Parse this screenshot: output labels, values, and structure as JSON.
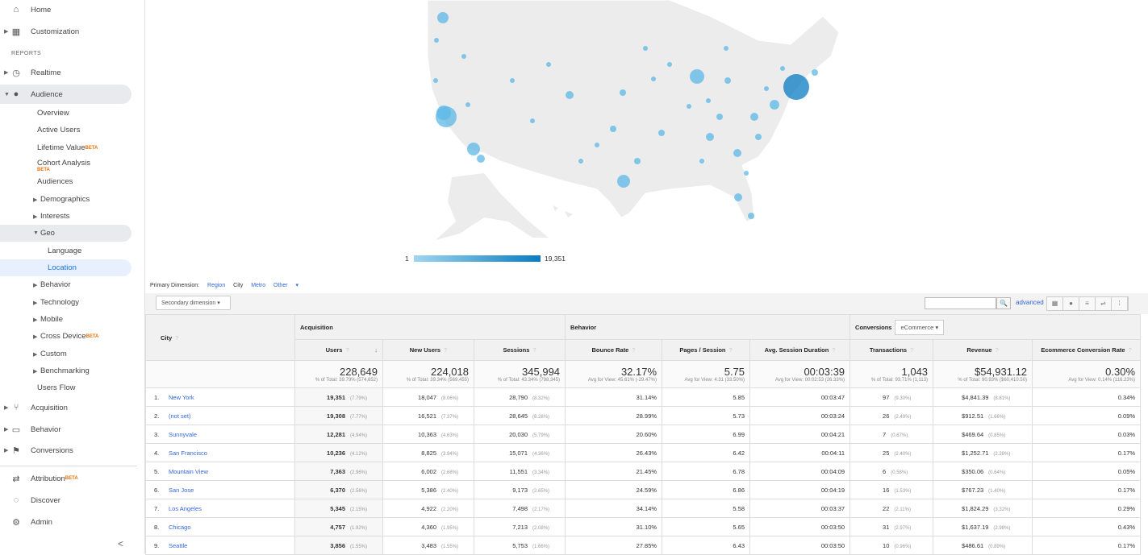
{
  "sidebar": {
    "home": "Home",
    "customization": "Customization",
    "reports_heading": "REPORTS",
    "realtime": "Realtime",
    "audience": "Audience",
    "audience_items": [
      "Overview",
      "Active Users",
      "Lifetime Value",
      "Cohort Analysis",
      "Audiences",
      "Demographics",
      "Interests",
      "Geo",
      "Language",
      "Location",
      "Behavior",
      "Technology",
      "Mobile",
      "Cross Device",
      "Custom",
      "Benchmarking",
      "Users Flow"
    ],
    "beta": "BETA",
    "acquisition": "Acquisition",
    "behavior": "Behavior",
    "conversions": "Conversions",
    "attribution": "Attribution",
    "discover": "Discover",
    "admin": "Admin",
    "collapse": "<"
  },
  "map": {
    "legend_min": "1",
    "legend_max": "19,351",
    "color_low": "#9ed6f0",
    "color_high": "#0a7cc2"
  },
  "primary_dimension": {
    "label": "Primary Dimension:",
    "options": [
      "Region",
      "City",
      "Metro",
      "Other"
    ],
    "selected": "City"
  },
  "toolbar": {
    "secondary_dimension": "Secondary dimension",
    "search_value": "",
    "advanced": "advanced"
  },
  "table": {
    "city_header": "City",
    "group_acquisition": "Acquisition",
    "group_behavior": "Behavior",
    "group_conversions": "Conversions",
    "conversions_select": "eCommerce",
    "columns": [
      "Users",
      "New Users",
      "Sessions",
      "Bounce Rate",
      "Pages / Session",
      "Avg. Session Duration",
      "Transactions",
      "Revenue",
      "Ecommerce Conversion Rate"
    ],
    "totals": [
      {
        "value": "228,649",
        "sub": "% of Total: 39.79% (574,652)"
      },
      {
        "value": "224,018",
        "sub": "% of Total: 39.34% (569,455)"
      },
      {
        "value": "345,994",
        "sub": "% of Total: 43.34% (798,345)"
      },
      {
        "value": "32.17%",
        "sub": "Avg for View: 45.61% (-29.47%)"
      },
      {
        "value": "5.75",
        "sub": "Avg for View: 4.31 (33.50%)"
      },
      {
        "value": "00:03:39",
        "sub": "Avg for View: 00:02:53 (26.33%)"
      },
      {
        "value": "1,043",
        "sub": "% of Total: 93.71% (1,113)"
      },
      {
        "value": "$54,931.12",
        "sub": "% of Total: 90.93% ($60,410.50)"
      },
      {
        "value": "0.30%",
        "sub": "Avg for View: 0.14% (116.23%)"
      }
    ],
    "rows": [
      {
        "n": "1.",
        "city": "New York",
        "users": "19,351",
        "users_p": "(7.79%)",
        "new": "18,047",
        "new_p": "(8.06%)",
        "sess": "28,790",
        "sess_p": "(8.32%)",
        "bounce": "31.14%",
        "pps": "5.85",
        "dur": "00:03:47",
        "tx": "97",
        "tx_p": "(9.30%)",
        "rev": "$4,841.39",
        "rev_p": "(8.81%)",
        "ecr": "0.34%"
      },
      {
        "n": "2.",
        "city": "(not set)",
        "users": "19,308",
        "users_p": "(7.77%)",
        "new": "16,521",
        "new_p": "(7.37%)",
        "sess": "28,645",
        "sess_p": "(8.28%)",
        "bounce": "28.99%",
        "pps": "5.73",
        "dur": "00:03:24",
        "tx": "26",
        "tx_p": "(2.49%)",
        "rev": "$912.51",
        "rev_p": "(1.66%)",
        "ecr": "0.09%"
      },
      {
        "n": "3.",
        "city": "Sunnyvale",
        "users": "12,281",
        "users_p": "(4.94%)",
        "new": "10,363",
        "new_p": "(4.63%)",
        "sess": "20,030",
        "sess_p": "(5.79%)",
        "bounce": "20.60%",
        "pps": "6.99",
        "dur": "00:04:21",
        "tx": "7",
        "tx_p": "(0.67%)",
        "rev": "$469.64",
        "rev_p": "(0.85%)",
        "ecr": "0.03%"
      },
      {
        "n": "4.",
        "city": "San Francisco",
        "users": "10,236",
        "users_p": "(4.12%)",
        "new": "8,825",
        "new_p": "(3.94%)",
        "sess": "15,071",
        "sess_p": "(4.36%)",
        "bounce": "26.43%",
        "pps": "6.42",
        "dur": "00:04:11",
        "tx": "25",
        "tx_p": "(2.40%)",
        "rev": "$1,252.71",
        "rev_p": "(2.28%)",
        "ecr": "0.17%"
      },
      {
        "n": "5.",
        "city": "Mountain View",
        "users": "7,363",
        "users_p": "(2.96%)",
        "new": "6,002",
        "new_p": "(2.68%)",
        "sess": "11,551",
        "sess_p": "(3.34%)",
        "bounce": "21.45%",
        "pps": "6.78",
        "dur": "00:04:09",
        "tx": "6",
        "tx_p": "(0.58%)",
        "rev": "$350.06",
        "rev_p": "(0.64%)",
        "ecr": "0.05%"
      },
      {
        "n": "6.",
        "city": "San Jose",
        "users": "6,370",
        "users_p": "(2.56%)",
        "new": "5,386",
        "new_p": "(2.40%)",
        "sess": "9,173",
        "sess_p": "(2.65%)",
        "bounce": "24.59%",
        "pps": "6.86",
        "dur": "00:04:19",
        "tx": "16",
        "tx_p": "(1.53%)",
        "rev": "$767.23",
        "rev_p": "(1.40%)",
        "ecr": "0.17%"
      },
      {
        "n": "7.",
        "city": "Los Angeles",
        "users": "5,345",
        "users_p": "(2.15%)",
        "new": "4,922",
        "new_p": "(2.20%)",
        "sess": "7,498",
        "sess_p": "(2.17%)",
        "bounce": "34.14%",
        "pps": "5.58",
        "dur": "00:03:37",
        "tx": "22",
        "tx_p": "(2.11%)",
        "rev": "$1,824.29",
        "rev_p": "(3.32%)",
        "ecr": "0.29%"
      },
      {
        "n": "8.",
        "city": "Chicago",
        "users": "4,757",
        "users_p": "(1.92%)",
        "new": "4,360",
        "new_p": "(1.95%)",
        "sess": "7,213",
        "sess_p": "(2.08%)",
        "bounce": "31.10%",
        "pps": "5.65",
        "dur": "00:03:50",
        "tx": "31",
        "tx_p": "(2.97%)",
        "rev": "$1,637.19",
        "rev_p": "(2.98%)",
        "ecr": "0.43%"
      },
      {
        "n": "9.",
        "city": "Seattle",
        "users": "3,856",
        "users_p": "(1.55%)",
        "new": "3,483",
        "new_p": "(1.55%)",
        "sess": "5,753",
        "sess_p": "(1.66%)",
        "bounce": "27.85%",
        "pps": "6.43",
        "dur": "00:03:50",
        "tx": "10",
        "tx_p": "(0.96%)",
        "rev": "$486.61",
        "rev_p": "(0.89%)",
        "ecr": "0.17%"
      }
    ]
  }
}
